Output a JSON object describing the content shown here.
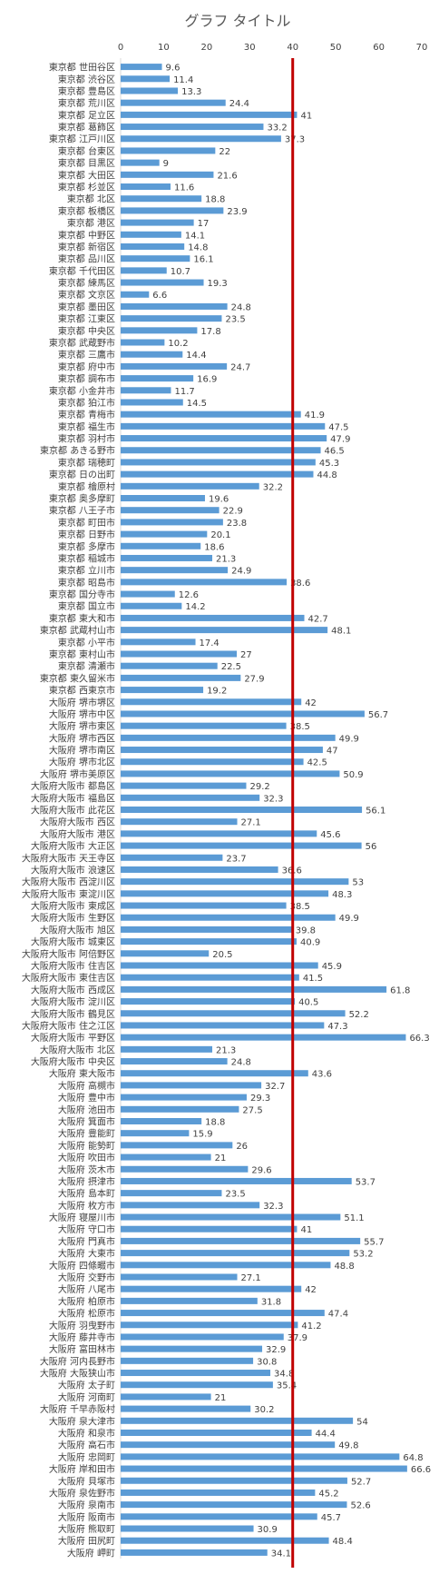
{
  "chart_data": {
    "type": "bar",
    "orientation": "horizontal",
    "title": "グラフ タイトル",
    "categories": [
      "東京都 世田谷区",
      "東京都 渋谷区",
      "東京都 豊島区",
      "東京都 荒川区",
      "東京都 足立区",
      "東京都 葛飾区",
      "東京都 江戸川区",
      "東京都 台東区",
      "東京都 目黒区",
      "東京都 大田区",
      "東京都 杉並区",
      "東京都 北区",
      "東京都 板橋区",
      "東京都 港区",
      "東京都 中野区",
      "東京都 新宿区",
      "東京都 品川区",
      "東京都 千代田区",
      "東京都 練馬区",
      "東京都 文京区",
      "東京都 墨田区",
      "東京都 江東区",
      "東京都 中央区",
      "東京都 武蔵野市",
      "東京都 三鷹市",
      "東京都 府中市",
      "東京都 調布市",
      "東京都 小金井市",
      "東京都 狛江市",
      "東京都 青梅市",
      "東京都 福生市",
      "東京都 羽村市",
      "東京都 あきる野市",
      "東京都 瑞穂町",
      "東京都 日の出町",
      "東京都 檜原村",
      "東京都 奥多摩町",
      "東京都 八王子市",
      "東京都 町田市",
      "東京都 日野市",
      "東京都 多摩市",
      "東京都 稲城市",
      "東京都 立川市",
      "東京都 昭島市",
      "東京都 国分寺市",
      "東京都 国立市",
      "東京都 東大和市",
      "東京都 武蔵村山市",
      "東京都 小平市",
      "東京都 東村山市",
      "東京都 清瀬市",
      "東京都 東久留米市",
      "東京都 西東京市",
      "大阪府 堺市堺区",
      "大阪府 堺市中区",
      "大阪府 堺市東区",
      "大阪府 堺市西区",
      "大阪府 堺市南区",
      "大阪府 堺市北区",
      "大阪府 堺市美原区",
      "大阪府大阪市 都島区",
      "大阪府大阪市 福島区",
      "大阪府大阪市 此花区",
      "大阪府大阪市 西区",
      "大阪府大阪市 港区",
      "大阪府大阪市 大正区",
      "大阪府大阪市 天王寺区",
      "大阪府大阪市 浪速区",
      "大阪府大阪市 西淀川区",
      "大阪府大阪市 東淀川区",
      "大阪府大阪市 東成区",
      "大阪府大阪市 生野区",
      "大阪府大阪市 旭区",
      "大阪府大阪市 城東区",
      "大阪府大阪市 阿倍野区",
      "大阪府大阪市 住吉区",
      "大阪府大阪市 東住吉区",
      "大阪府大阪市 西成区",
      "大阪府大阪市 淀川区",
      "大阪府大阪市 鶴見区",
      "大阪府大阪市 住之江区",
      "大阪府大阪市 平野区",
      "大阪府大阪市 北区",
      "大阪府大阪市 中央区",
      "大阪府 東大阪市",
      "大阪府 高槻市",
      "大阪府 豊中市",
      "大阪府 池田市",
      "大阪府 箕面市",
      "大阪府 豊能町",
      "大阪府 能勢町",
      "大阪府 吹田市",
      "大阪府 茨木市",
      "大阪府 摂津市",
      "大阪府 島本町",
      "大阪府 枚方市",
      "大阪府 寝屋川市",
      "大阪府 守口市",
      "大阪府 門真市",
      "大阪府 大東市",
      "大阪府 四條畷市",
      "大阪府 交野市",
      "大阪府 八尾市",
      "大阪府 柏原市",
      "大阪府 松原市",
      "大阪府 羽曳野市",
      "大阪府 藤井寺市",
      "大阪府 富田林市",
      "大阪府 河内長野市",
      "大阪府 大阪狭山市",
      "大阪府 太子町",
      "大阪府 河南町",
      "大阪府 千早赤阪村",
      "大阪府 泉大津市",
      "大阪府 和泉市",
      "大阪府 高石市",
      "大阪府 忠岡町",
      "大阪府 岸和田市",
      "大阪府 貝塚市",
      "大阪府 泉佐野市",
      "大阪府 泉南市",
      "大阪府 阪南市",
      "大阪府 熊取町",
      "大阪府 田尻町",
      "大阪府 岬町"
    ],
    "values": [
      9.6,
      11.4,
      13.3,
      24.4,
      41,
      33.2,
      37.3,
      22,
      9,
      21.6,
      11.6,
      18.8,
      23.9,
      17,
      14.1,
      14.8,
      16.1,
      10.7,
      19.3,
      6.6,
      24.8,
      23.5,
      17.8,
      10.2,
      14.4,
      24.7,
      16.9,
      11.7,
      14.5,
      41.9,
      47.5,
      47.9,
      46.5,
      45.3,
      44.8,
      32.2,
      19.6,
      22.9,
      23.8,
      20.1,
      18.6,
      21.3,
      24.9,
      38.6,
      12.6,
      14.2,
      42.7,
      48.1,
      17.4,
      27,
      22.5,
      27.9,
      19.2,
      42,
      56.7,
      38.5,
      49.9,
      47,
      42.5,
      50.9,
      29.2,
      32.3,
      56.1,
      27.1,
      45.6,
      56,
      23.7,
      36.6,
      53,
      48.3,
      38.5,
      49.9,
      39.8,
      40.9,
      20.5,
      45.9,
      41.5,
      61.8,
      40.5,
      52.2,
      47.3,
      66.3,
      21.3,
      24.8,
      43.6,
      32.7,
      29.3,
      27.5,
      18.8,
      15.9,
      26,
      21,
      29.6,
      53.7,
      23.5,
      32.3,
      51.1,
      41,
      55.7,
      53.2,
      48.8,
      27.1,
      42,
      31.8,
      47.4,
      41.2,
      37.9,
      32.9,
      30.8,
      34.8,
      35.4,
      21,
      30.2,
      54,
      44.4,
      49.8,
      64.8,
      66.6,
      52.7,
      45.2,
      52.6,
      45.7,
      30.9,
      48.4,
      34.1
    ],
    "color": "#5b9bd5",
    "xlim": [
      0,
      70
    ],
    "xticks": [
      0,
      10,
      20,
      30,
      40,
      50,
      60,
      70
    ],
    "reference_line": {
      "value": 40,
      "color": "#c00000"
    }
  }
}
